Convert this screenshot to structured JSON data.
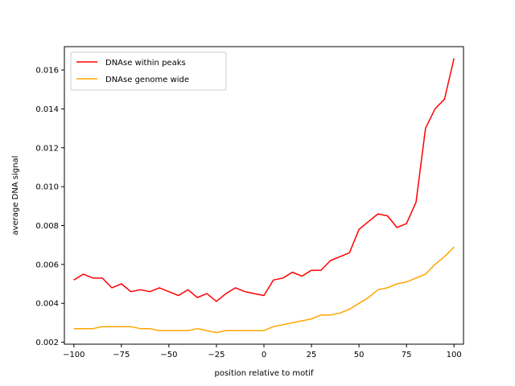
{
  "chart_data": {
    "type": "line",
    "title": "",
    "xlabel": "position relative to motif",
    "ylabel": "average DNA signal",
    "xlim": [
      -105,
      105
    ],
    "ylim": [
      0.0019,
      0.0172
    ],
    "xticks": [
      -100,
      -75,
      -50,
      -25,
      0,
      25,
      50,
      75,
      100
    ],
    "xtick_labels": [
      "−100",
      "−75",
      "−50",
      "−25",
      "0",
      "25",
      "50",
      "75",
      "100"
    ],
    "yticks": [
      0.002,
      0.004,
      0.006,
      0.008,
      0.01,
      0.012,
      0.014,
      0.016
    ],
    "ytick_labels": [
      "0.002",
      "0.004",
      "0.006",
      "0.008",
      "0.010",
      "0.012",
      "0.014",
      "0.016"
    ],
    "grid": false,
    "legend_position": "top-left",
    "x": [
      -100,
      -95,
      -90,
      -85,
      -80,
      -75,
      -70,
      -65,
      -60,
      -55,
      -50,
      -45,
      -40,
      -35,
      -30,
      -25,
      -20,
      -15,
      -10,
      -5,
      0,
      5,
      10,
      15,
      20,
      25,
      30,
      35,
      40,
      45,
      50,
      55,
      60,
      65,
      70,
      75,
      80,
      85,
      90,
      95,
      100
    ],
    "series": [
      {
        "name": "DNAse within peaks",
        "color": "#ff0000",
        "values": [
          0.0052,
          0.0055,
          0.0053,
          0.0053,
          0.0048,
          0.005,
          0.0046,
          0.0047,
          0.0046,
          0.0048,
          0.0046,
          0.0044,
          0.0047,
          0.0043,
          0.0045,
          0.0041,
          0.0045,
          0.0048,
          0.0046,
          0.0045,
          0.0044,
          0.0052,
          0.0053,
          0.0056,
          0.0054,
          0.0057,
          0.0057,
          0.0062,
          0.0064,
          0.0066,
          0.0078,
          0.0082,
          0.0086,
          0.0085,
          0.0079,
          0.0081,
          0.0092,
          0.013,
          0.014,
          0.0145,
          0.0166
        ]
      },
      {
        "name": "DNAse genome wide",
        "color": "#ffa500",
        "values": [
          0.0027,
          0.0027,
          0.0027,
          0.0028,
          0.0028,
          0.0028,
          0.0028,
          0.0027,
          0.0027,
          0.0026,
          0.0026,
          0.0026,
          0.0026,
          0.0027,
          0.0026,
          0.0025,
          0.0026,
          0.0026,
          0.0026,
          0.0026,
          0.0026,
          0.0028,
          0.0029,
          0.003,
          0.0031,
          0.0032,
          0.0034,
          0.0034,
          0.0035,
          0.0037,
          0.004,
          0.0043,
          0.0047,
          0.0048,
          0.005,
          0.0051,
          0.0053,
          0.0055,
          0.006,
          0.0064,
          0.0069
        ]
      }
    ]
  }
}
